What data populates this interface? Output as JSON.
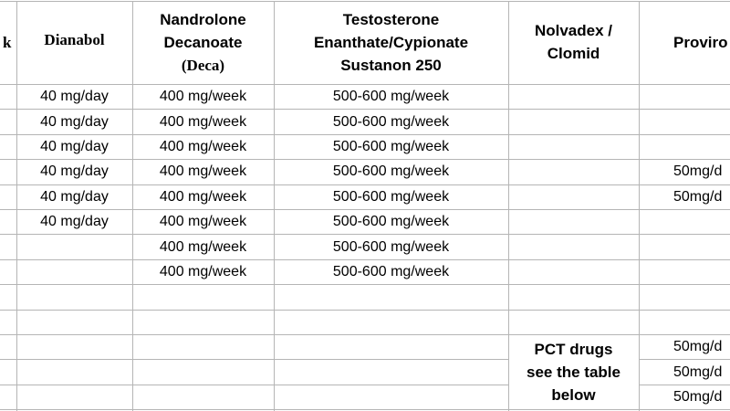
{
  "table": {
    "header": [
      [
        "k"
      ],
      [
        "Dianabol"
      ],
      [
        "Nandrolone",
        "Decanoate",
        "(Deca)"
      ],
      [
        "Testosterone",
        "Enanthate/Cypionate",
        "Sustanon 250"
      ],
      [
        "Nolvadex /",
        "Clomid"
      ],
      [
        "Proviro"
      ]
    ],
    "rows": [
      [
        null,
        "40 mg/day",
        "400 mg/week",
        "500-600 mg/week",
        null,
        null
      ],
      [
        null,
        "40 mg/day",
        "400 mg/week",
        "500-600 mg/week",
        null,
        null
      ],
      [
        null,
        "40 mg/day",
        "400 mg/week",
        "500-600 mg/week",
        null,
        null
      ],
      [
        null,
        "40 mg/day",
        "400 mg/week",
        "500-600 mg/week",
        null,
        "50mg/d"
      ],
      [
        null,
        "40 mg/day",
        "400 mg/week",
        "500-600 mg/week",
        null,
        "50mg/d"
      ],
      [
        null,
        "40 mg/day",
        "400 mg/week",
        "500-600 mg/week",
        null,
        null
      ],
      [
        null,
        null,
        "400 mg/week",
        "500-600 mg/week",
        null,
        null
      ],
      [
        null,
        null,
        "400 mg/week",
        "500-600 mg/week",
        null,
        null
      ],
      [
        null,
        null,
        null,
        null,
        null,
        null
      ],
      [
        null,
        null,
        null,
        null,
        null,
        null
      ],
      [
        null,
        null,
        null,
        null,
        [
          "PCT drugs",
          "see the table",
          "below"
        ],
        "50mg/d"
      ],
      [
        null,
        null,
        null,
        null,
        null,
        "50mg/d"
      ],
      [
        null,
        null,
        null,
        null,
        null,
        "50mg/d"
      ]
    ]
  }
}
